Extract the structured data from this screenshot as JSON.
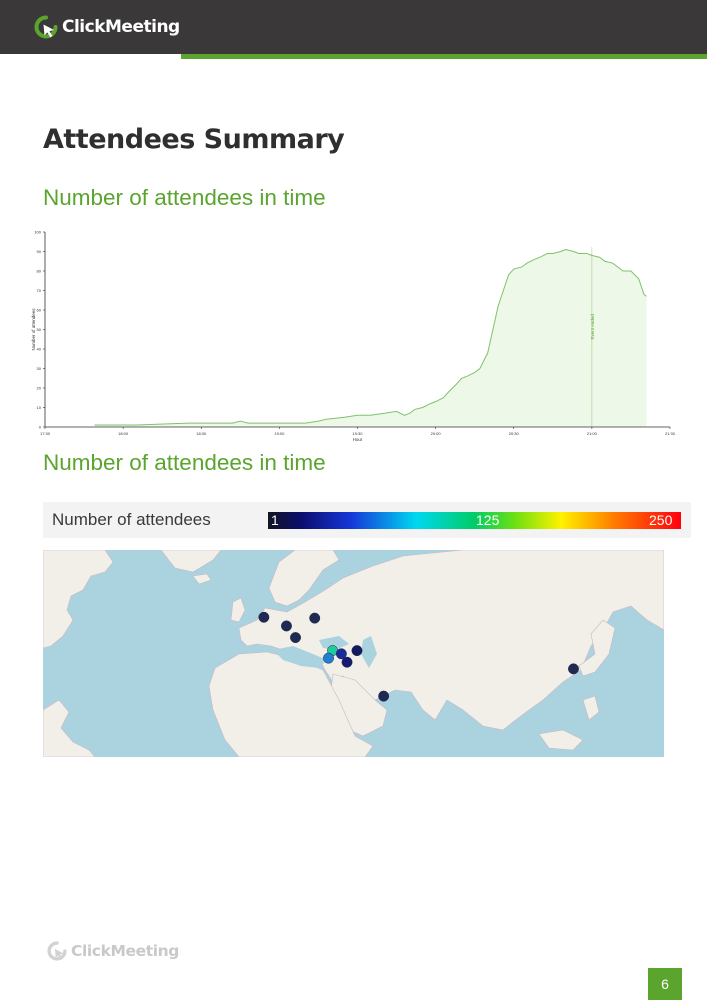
{
  "header": {
    "brand": "ClickMeeting"
  },
  "page_title": "Attendees Summary",
  "sections": {
    "time_chart_title": "Number of attendees in time",
    "map_title": "Number of attendees in time"
  },
  "chart_data": {
    "type": "area",
    "title": "",
    "xlabel": "Hour",
    "ylabel": "Number of attendees",
    "x_ticks": [
      "17:30",
      "18:00",
      "18:30",
      "19:00",
      "19:30",
      "20:00",
      "20:30",
      "21:00",
      "21:30"
    ],
    "y_ticks": [
      0,
      10,
      20,
      30,
      40,
      50,
      60,
      70,
      80,
      90,
      100
    ],
    "ylim": [
      0,
      100
    ],
    "xlim_minutes": [
      0,
      240
    ],
    "x_minutes": [
      19,
      35,
      55,
      72,
      75,
      78,
      100,
      105,
      108,
      115,
      120,
      125,
      130,
      135,
      138,
      140,
      142,
      145,
      148,
      150,
      153,
      155,
      158,
      160,
      162,
      165,
      167,
      170,
      172,
      174,
      176,
      178,
      180,
      183,
      185,
      188,
      190,
      193,
      195,
      198,
      200,
      203,
      205,
      208,
      210,
      213,
      215,
      218,
      220,
      222,
      225,
      228,
      230,
      231
    ],
    "values": [
      1,
      1,
      2,
      2,
      3,
      2,
      2,
      3,
      4,
      5,
      6,
      6,
      7,
      8,
      6,
      7,
      9,
      10,
      12,
      13,
      15,
      18,
      22,
      25,
      26,
      28,
      30,
      38,
      50,
      62,
      70,
      78,
      81,
      82,
      84,
      86,
      87,
      89,
      89,
      90,
      91,
      90,
      89,
      89,
      88,
      87,
      85,
      84,
      82,
      80,
      80,
      76,
      68,
      67
    ],
    "grid": false,
    "marker": {
      "x_minute": 210,
      "label": "Event ended",
      "color": "#5ba52f"
    },
    "colors": {
      "line": "#7ec26a",
      "fill": "#eef8e9",
      "axis": "#333333"
    }
  },
  "legend": {
    "label": "Number of attendees",
    "min": "1",
    "mid": "125",
    "max": "250"
  },
  "map": {
    "water_color": "#aad3df",
    "land_color": "#f2efe9",
    "markers": [
      {
        "place": "United Kingdom",
        "lon": -1.5,
        "lat": 52.5,
        "count": 1,
        "color": "#1f2a52"
      },
      {
        "place": "Germany",
        "lon": 8.5,
        "lat": 49.5,
        "count": 1,
        "color": "#1f2a52"
      },
      {
        "place": "Poland",
        "lon": 21,
        "lat": 52.2,
        "count": 1,
        "color": "#1f2a52"
      },
      {
        "place": "Italy",
        "lon": 12.5,
        "lat": 45.5,
        "count": 1,
        "color": "#1f2a52"
      },
      {
        "place": "Turkey",
        "lon": 28.9,
        "lat": 41.0,
        "count": 60,
        "color": "#1ecb9a"
      },
      {
        "place": "Turkey",
        "lon": 32.8,
        "lat": 39.9,
        "count": 15,
        "color": "#1b2a9a"
      },
      {
        "place": "Turkey",
        "lon": 27.1,
        "lat": 38.4,
        "count": 25,
        "color": "#1f7fd0"
      },
      {
        "place": "Turkey",
        "lon": 35.3,
        "lat": 37.0,
        "count": 5,
        "color": "#151a70"
      },
      {
        "place": "Turkey",
        "lon": 39.7,
        "lat": 41.0,
        "count": 3,
        "color": "#151a60"
      },
      {
        "place": "Qatar",
        "lon": 51.5,
        "lat": 25.3,
        "count": 1,
        "color": "#1f2a52"
      },
      {
        "place": "Japan",
        "lon": 135.5,
        "lat": 34.7,
        "count": 1,
        "color": "#1f2a52"
      }
    ]
  },
  "footer": {
    "brand": "ClickMeeting",
    "page_number": "6"
  }
}
